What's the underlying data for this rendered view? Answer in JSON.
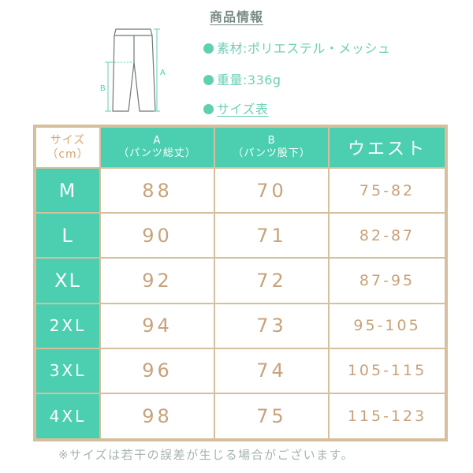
{
  "header": {
    "title": "商品情報"
  },
  "info": {
    "material": "素材:ポリエステル・メッシュ",
    "weight": "重量:336g",
    "size_link": "サイズ表"
  },
  "diagram": {
    "label_a": "A",
    "label_b": "B"
  },
  "table": {
    "corner_line1": "サイズ",
    "corner_line2": "（cm）",
    "columns": [
      {
        "line1": "A",
        "line2": "（パンツ総丈）"
      },
      {
        "line1": "B",
        "line2": "（パンツ股下）"
      },
      {
        "line1": "ウエスト",
        "line2": ""
      }
    ],
    "rows": [
      {
        "size": "M",
        "a": "88",
        "b": "70",
        "waist": "75-82"
      },
      {
        "size": "L",
        "a": "90",
        "b": "71",
        "waist": "82-87"
      },
      {
        "size": "XL",
        "a": "92",
        "b": "72",
        "waist": "87-95"
      },
      {
        "size": "2XL",
        "a": "94",
        "b": "73",
        "waist": "95-105"
      },
      {
        "size": "3XL",
        "a": "96",
        "b": "74",
        "waist": "105-115"
      },
      {
        "size": "4XL",
        "a": "98",
        "b": "75",
        "waist": "115-123"
      }
    ]
  },
  "note": "※サイズは若干の誤差が生じる場合がございます。",
  "colors": {
    "accent": "#4ccfb0",
    "border": "#d6bf9c",
    "value_text": "#c8a27a"
  }
}
